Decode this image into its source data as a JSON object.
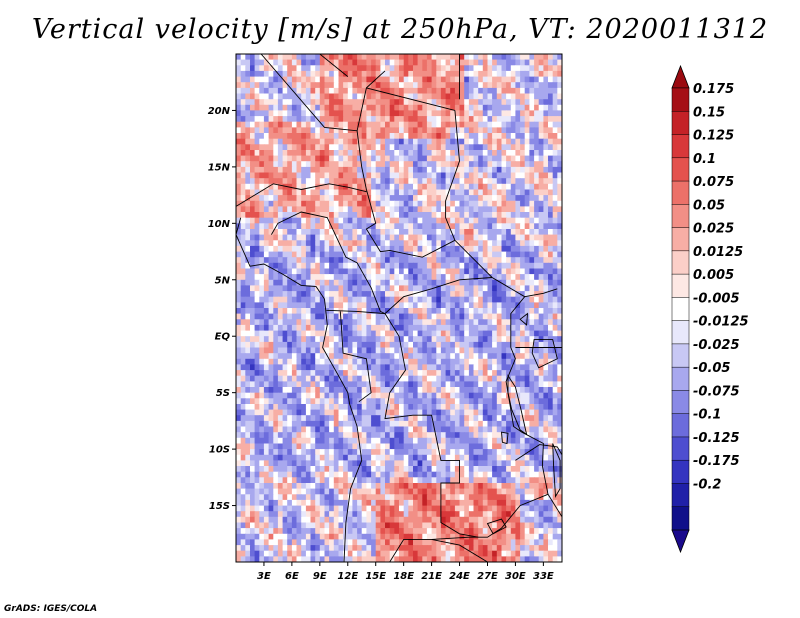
{
  "chart_data": {
    "type": "heatmap",
    "title": "Vertical velocity [m/s] at 250hPa, VT: 2020011312",
    "xlabel": "",
    "ylabel": "",
    "x_ticks": [
      "3E",
      "6E",
      "9E",
      "12E",
      "15E",
      "18E",
      "21E",
      "24E",
      "27E",
      "30E",
      "33E"
    ],
    "x_values": [
      3,
      6,
      9,
      12,
      15,
      18,
      21,
      24,
      27,
      30,
      33
    ],
    "xlim": [
      0,
      35
    ],
    "y_ticks": [
      "20N",
      "15N",
      "10N",
      "5N",
      "EQ",
      "5S",
      "10S",
      "15S"
    ],
    "y_values": [
      20,
      15,
      10,
      5,
      0,
      -5,
      -10,
      -15
    ],
    "ylim": [
      -20,
      25
    ],
    "colorbar": {
      "labels": [
        "0.175",
        "0.15",
        "0.125",
        "0.1",
        "0.075",
        "0.05",
        "0.025",
        "0.0125",
        "0.005",
        "-0.005",
        "-0.0125",
        "-0.025",
        "-0.05",
        "-0.075",
        "-0.1",
        "-0.125",
        "-0.175",
        "-0.2"
      ],
      "colors": [
        "#a50f15",
        "#c42227",
        "#d8383a",
        "#e4524e",
        "#ec7169",
        "#f28f86",
        "#f7aea5",
        "#fbcfc8",
        "#fde8e4",
        "#ffffff",
        "#e8e8fb",
        "#c8c8f4",
        "#a8a8ee",
        "#8a8ae6",
        "#6c6cdc",
        "#4e4ed0",
        "#3434c0",
        "#2020a8",
        "#10108a"
      ],
      "top_arrow": "#9a0a10",
      "bottom_arrow": "#1a0a8c"
    },
    "regions": [
      {
        "lon_min": 9,
        "lon_max": 24,
        "lat_min": 18,
        "lat_max": 25,
        "value": 0.06
      },
      {
        "lon_min": 0,
        "lon_max": 14,
        "lat_min": 11,
        "lat_max": 19,
        "value": 0.04
      },
      {
        "lon_min": 15,
        "lon_max": 30,
        "lat_min": -20,
        "lat_max": -13,
        "value": 0.07
      },
      {
        "lon_min": 30,
        "lon_max": 35,
        "lat_min": -14,
        "lat_max": -6,
        "value": 0.02
      },
      {
        "lon_min": 0,
        "lon_max": 35,
        "lat_min": -12,
        "lat_max": 8,
        "value": -0.03
      }
    ]
  },
  "footer": {
    "credit": "GrADS: IGES/COLA"
  }
}
